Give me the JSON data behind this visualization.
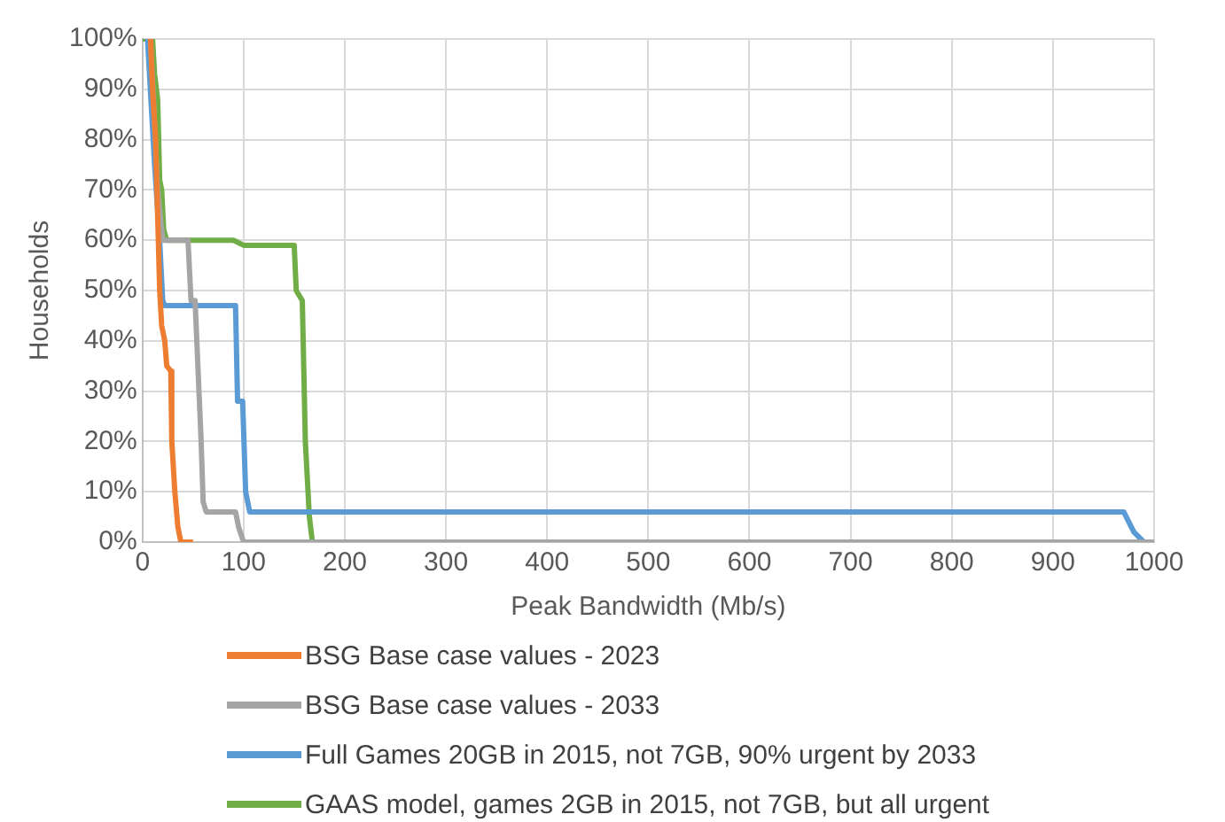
{
  "chart_data": {
    "type": "line",
    "xlabel": "Peak Bandwidth (Mb/s)",
    "ylabel": "Households",
    "xlim": [
      0,
      1000
    ],
    "xticks": [
      0,
      100,
      200,
      300,
      400,
      500,
      600,
      700,
      800,
      900,
      1000
    ],
    "ylim": [
      0,
      100
    ],
    "yticks": [
      {
        "value": 0,
        "label": "0%"
      },
      {
        "value": 10,
        "label": "10%"
      },
      {
        "value": 20,
        "label": "20%"
      },
      {
        "value": 30,
        "label": "30%"
      },
      {
        "value": 40,
        "label": "40%"
      },
      {
        "value": 50,
        "label": "50%"
      },
      {
        "value": 60,
        "label": "60%"
      },
      {
        "value": 70,
        "label": "70%"
      },
      {
        "value": 80,
        "label": "80%"
      },
      {
        "value": 90,
        "label": "90%"
      },
      {
        "value": 100,
        "label": "100%"
      }
    ],
    "grid": true,
    "legend": "bottom",
    "marker": "none",
    "line_style": "solid",
    "series": [
      {
        "name": "BSG Base case values - 2023",
        "color": "#ed7d31",
        "x": [
          8,
          10,
          13,
          15,
          17,
          19,
          22,
          24,
          28,
          29,
          32,
          35,
          38,
          50
        ],
        "values": [
          100,
          90,
          80,
          65,
          50,
          43,
          40,
          35,
          34,
          20,
          10,
          3,
          0,
          0
        ]
      },
      {
        "name": "BSG Base case values - 2033",
        "color": "#a5a5a5",
        "x": [
          8,
          15,
          20,
          45,
          48,
          52,
          58,
          60,
          63,
          92,
          95,
          100,
          1000
        ],
        "values": [
          100,
          70,
          60,
          60,
          48,
          48,
          20,
          8,
          6,
          6,
          3,
          0,
          0
        ]
      },
      {
        "name": "Full Games 20GB in 2015, not 7GB, 90% urgent by 2033",
        "color": "#5b9bd5",
        "x": [
          5,
          12,
          17,
          20,
          22,
          92,
          94,
          99,
          102,
          106,
          970,
          980,
          990,
          1000
        ],
        "values": [
          100,
          75,
          60,
          48,
          47,
          47,
          28,
          28,
          10,
          6,
          6,
          2,
          0,
          0
        ]
      },
      {
        "name": "GAAS model, games 2GB in 2015, not 7GB, but all urgent",
        "color": "#70ad47",
        "x": [
          0,
          10,
          12,
          15,
          17,
          19,
          21,
          24,
          90,
          100,
          150,
          152,
          158,
          161,
          165,
          168
        ],
        "values": [
          100,
          100,
          93,
          88,
          72,
          70,
          62,
          60,
          60,
          59,
          59,
          50,
          48,
          20,
          5,
          0
        ]
      }
    ]
  }
}
